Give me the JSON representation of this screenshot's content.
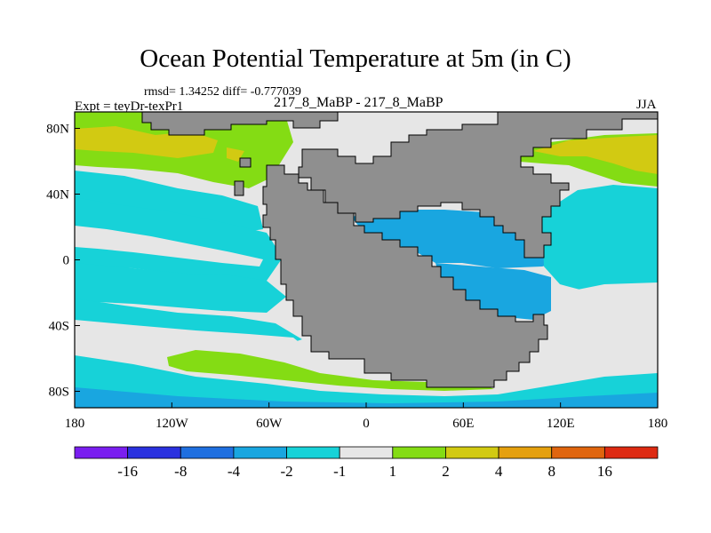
{
  "title": "Ocean Potential Temperature at 5m (in C)",
  "stats": "rmsd= 1.34252  diff= -0.777039",
  "experiment": "Expt = teyDr-texPr1",
  "experiment_name": "217_8_MaBP - 217_8_MaBP",
  "season": "JJA",
  "colors": {
    "land": "#8f8f8f",
    "neutral": "#e6e6e6",
    "levels": [
      "#7a1ef0",
      "#2a31df",
      "#1f6fe0",
      "#19a6e0",
      "#17d2d8",
      "#e6e6e6",
      "#84dc14",
      "#d2ca12",
      "#e5a00e",
      "#e0650e",
      "#dd2a12"
    ]
  },
  "chart_data": {
    "type": "map-contour",
    "x_ticks": [
      "180",
      "120W",
      "60W",
      "0",
      "60E",
      "120E",
      "180"
    ],
    "x_tick_values": [
      -180,
      -120,
      -60,
      0,
      60,
      120,
      180
    ],
    "y_ticks": [
      "80N",
      "40N",
      "0",
      "40S",
      "80S"
    ],
    "y_tick_values": [
      80,
      40,
      0,
      -40,
      -80
    ],
    "xlim": [
      -180,
      180
    ],
    "ylim": [
      -90,
      90
    ],
    "colorbar": {
      "labels": [
        "-16",
        "-8",
        "-4",
        "-2",
        "-1",
        "1",
        "2",
        "4",
        "8",
        "16"
      ],
      "values": [
        -16,
        -8,
        -4,
        -2,
        -1,
        1,
        2,
        4,
        8,
        16
      ],
      "n_bins": 11
    },
    "regions": [
      {
        "name": "north-polar-warm",
        "category": "2 to 4"
      },
      {
        "name": "north-pacific-band",
        "category": "1 to 2"
      },
      {
        "name": "north-pacific-warm",
        "category": "2 to 4"
      },
      {
        "name": "north-atlantic-warm",
        "category": "2 to 4"
      },
      {
        "name": "subtropical-cool-north",
        "category": "-2 to -1"
      },
      {
        "name": "tethys-cool",
        "category": "-4 to -2"
      },
      {
        "name": "equatorial-cool",
        "category": "-2 to -1"
      },
      {
        "name": "east-ocean-cool",
        "category": "-4 to -2"
      },
      {
        "name": "southern-band-warm",
        "category": "1 to 2"
      },
      {
        "name": "southern-ocean-cool",
        "category": "-2 to -1"
      }
    ]
  }
}
